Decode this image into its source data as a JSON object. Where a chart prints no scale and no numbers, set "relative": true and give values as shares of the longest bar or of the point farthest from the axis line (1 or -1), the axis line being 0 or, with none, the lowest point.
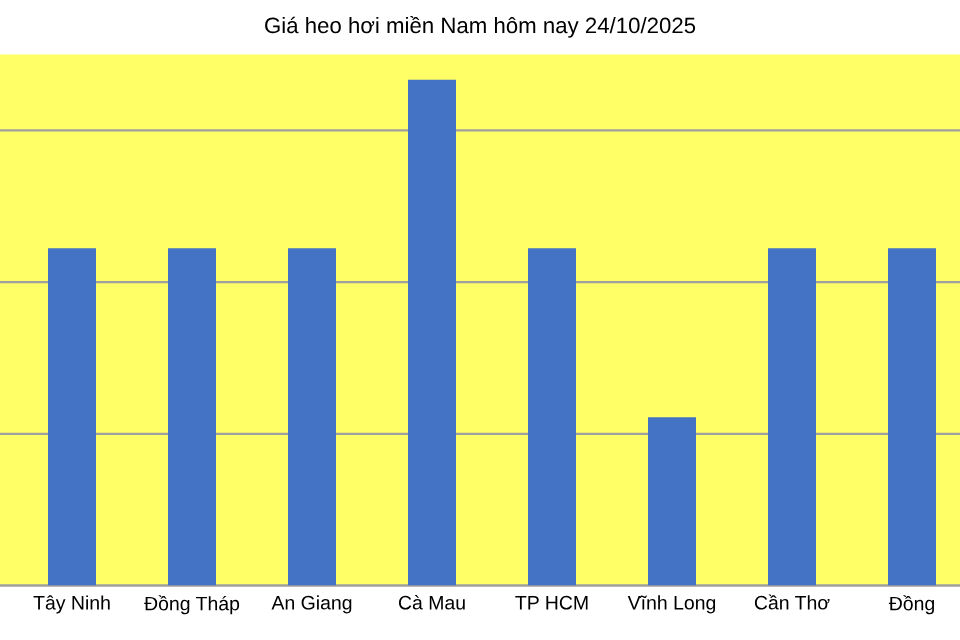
{
  "chart_data": {
    "type": "bar",
    "title": "Giá heo hơi miền Nam hôm nay 24/10/2025",
    "categories": [
      "Tây Ninh",
      "Đồng Tháp",
      "An Giang",
      "Cà Mau",
      "TP HCM",
      "Vĩnh Long",
      "Cần Thơ",
      "Đồng"
    ],
    "values": [
      0.667,
      0.667,
      0.667,
      1,
      0.667,
      0.333,
      0.667,
      0.667
    ],
    "color": "#4472c4",
    "relative": true,
    "grid": "y"
  }
}
